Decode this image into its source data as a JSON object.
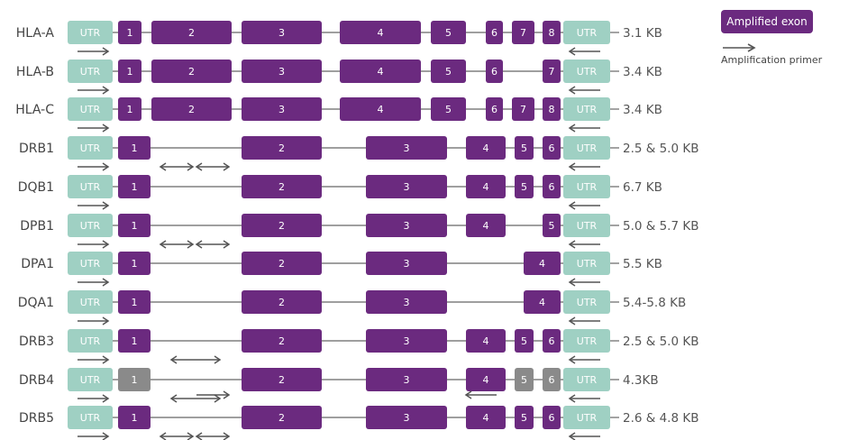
{
  "legend": {
    "amplified_exon": "Amplified exon",
    "amplification_primer": "Amplification primer"
  },
  "colors": {
    "exon": "#6b2a7f",
    "utr": "#9fd0c3",
    "unamplified": "#8a8a8a",
    "line": "#666666"
  },
  "genes": [
    {
      "name": "HLA-A",
      "size": "3.1 KB",
      "exons": [
        "1",
        "2",
        "3",
        "4",
        "5",
        "6",
        "7",
        "8"
      ]
    },
    {
      "name": "HLA-B",
      "size": "3.4 KB",
      "exons": [
        "1",
        "2",
        "3",
        "4",
        "5",
        "6",
        "7"
      ]
    },
    {
      "name": "HLA-C",
      "size": "3.4 KB",
      "exons": [
        "1",
        "2",
        "3",
        "4",
        "5",
        "6",
        "7",
        "8"
      ]
    },
    {
      "name": "DRB1",
      "size": "2.5 & 5.0 KB",
      "exons": [
        "1",
        "2",
        "3",
        "4",
        "5",
        "6"
      ]
    },
    {
      "name": "DQB1",
      "size": "6.7 KB",
      "exons": [
        "1",
        "2",
        "3",
        "4",
        "5",
        "6"
      ]
    },
    {
      "name": "DPB1",
      "size": "5.0 & 5.7 KB",
      "exons": [
        "1",
        "2",
        "3",
        "4",
        "5"
      ]
    },
    {
      "name": "DPA1",
      "size": "5.5 KB",
      "exons": [
        "1",
        "2",
        "3",
        "4"
      ]
    },
    {
      "name": "DQA1",
      "size": "5.4-5.8 KB",
      "exons": [
        "1",
        "2",
        "3",
        "4"
      ]
    },
    {
      "name": "DRB3",
      "size": "2.5 & 5.0 KB",
      "exons": [
        "1",
        "2",
        "3",
        "4",
        "5",
        "6"
      ]
    },
    {
      "name": "DRB4",
      "size": "4.3KB",
      "exons": [
        "1",
        "2",
        "3",
        "4",
        "5",
        "6"
      ]
    },
    {
      "name": "DRB5",
      "size": "2.6 & 4.8 KB",
      "exons": [
        "1",
        "2",
        "3",
        "4",
        "5",
        "6"
      ]
    }
  ],
  "utr_label": "UTR"
}
